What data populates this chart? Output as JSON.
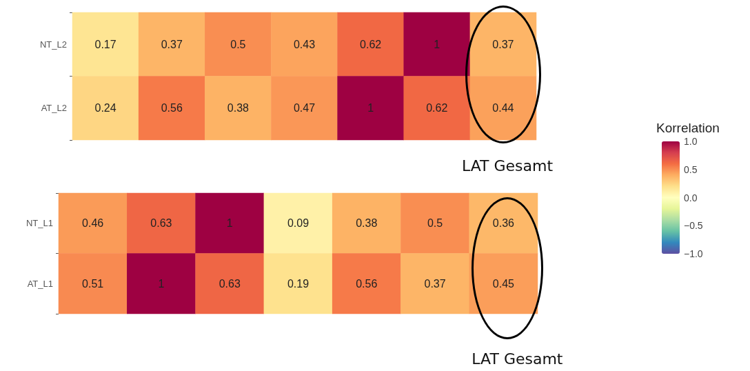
{
  "chart_data": [
    {
      "type": "heatmap",
      "categories": [
        null,
        null,
        null,
        null,
        null,
        null,
        null
      ],
      "y_categories": [
        "NT_L2",
        "AT_L2"
      ],
      "cells": [
        [
          0.17,
          0.37,
          0.5,
          0.43,
          0.62,
          1,
          0.37
        ],
        [
          0.24,
          0.56,
          0.38,
          0.47,
          1,
          0.62,
          0.44
        ]
      ],
      "data_labels": true,
      "tick_labels": "y",
      "clabel": "Korrelation",
      "clim": [
        -1,
        1
      ],
      "cticks": [
        {
          "value": 1,
          "label": "1.0"
        },
        {
          "value": 0.5,
          "label": "0.5"
        },
        {
          "value": 0,
          "label": "0.0"
        },
        {
          "value": -0.5,
          "label": "−0.5"
        },
        {
          "value": -1,
          "label": "−1.0"
        }
      ],
      "annotations": [
        "LAT Gesamt"
      ]
    },
    {
      "type": "heatmap",
      "categories": [
        null,
        null,
        null,
        null,
        null,
        null,
        null
      ],
      "y_categories": [
        "NT_L1",
        "AT_L1"
      ],
      "cells": [
        [
          0.46,
          0.63,
          1,
          0.09,
          0.38,
          0.5,
          0.36
        ],
        [
          0.51,
          1,
          0.63,
          0.19,
          0.56,
          0.37,
          0.45
        ]
      ],
      "data_labels": true,
      "tick_labels": "y",
      "annotations": [
        "LAT Gesamt"
      ]
    }
  ]
}
